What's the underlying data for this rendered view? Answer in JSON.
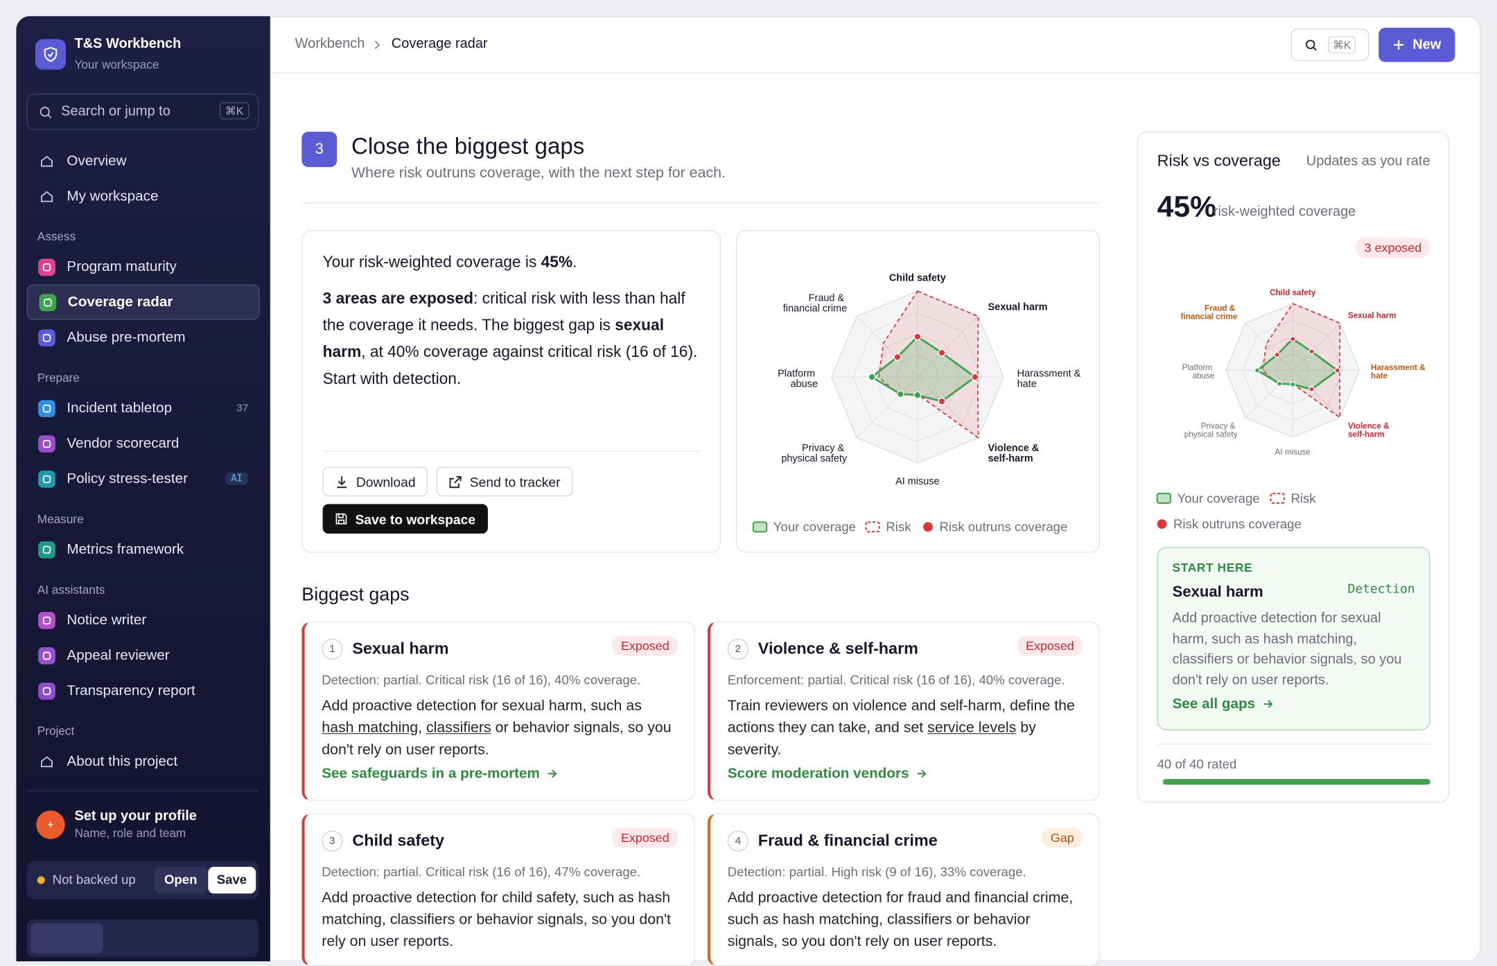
{
  "sidebar": {
    "app_title": "T&S Workbench",
    "app_subtitle": "Your workspace",
    "search": "Search or jump to",
    "search_kbd": "⌘K",
    "groups": [
      {
        "items": [
          {
            "label": "Overview"
          },
          {
            "label": "My workspace"
          }
        ]
      },
      {
        "label": "Assess",
        "items": [
          {
            "label": "Program maturity",
            "color": "#d9468f"
          },
          {
            "label": "Coverage radar",
            "color": "#3fa34d",
            "active": true
          },
          {
            "label": "Abuse pre-mortem",
            "color": "#5b5bd6"
          }
        ]
      },
      {
        "label": "Prepare",
        "items": [
          {
            "label": "Incident tabletop",
            "color": "#2f8fe0",
            "badge": "37"
          },
          {
            "label": "Vendor scorecard",
            "color": "#9a4fc9"
          },
          {
            "label": "Policy stress-tester",
            "color": "#1f9aa8",
            "badge": "AI"
          }
        ]
      },
      {
        "label": "Measure",
        "items": [
          {
            "label": "Metrics framework",
            "color": "#1f9a8a"
          }
        ]
      },
      {
        "label": "AI assistants",
        "items": [
          {
            "label": "Notice writer",
            "color": "#b34fc9"
          },
          {
            "label": "Appeal reviewer",
            "color": "#9a4fc9"
          },
          {
            "label": "Transparency report",
            "color": "#8a4fc9"
          }
        ]
      },
      {
        "label": "Project",
        "items": [
          {
            "label": "About this project"
          }
        ]
      }
    ],
    "profile_title": "Set up your profile",
    "profile_subtitle": "Name, role and team",
    "backup_status": "Not backed up",
    "open": "Open",
    "save": "Save"
  },
  "header": {
    "breadcrumb_root": "Workbench",
    "breadcrumb_current": "Coverage radar",
    "search_kbd": "⌘K",
    "new": "New"
  },
  "section": {
    "step": "3",
    "title": "Close the biggest gaps",
    "subtitle": "Where risk outruns coverage, with the next step for each."
  },
  "summary": {
    "line1": [
      {
        "text": "Your risk-weighted coverage is "
      },
      {
        "text": "45%",
        "bold": true
      },
      {
        "text": "."
      }
    ],
    "line2": [
      {
        "text": "3 areas are exposed",
        "bold": true
      },
      {
        "text": ": critical risk with less than half the coverage it needs. The biggest gap is "
      },
      {
        "text": "sexual harm",
        "bold": true
      },
      {
        "text": ", at 40% coverage against critical risk (16 of 16). Start with detection."
      }
    ],
    "download": "Download",
    "send": "Send to tracker",
    "save": "Save to workspace"
  },
  "chart_data": {
    "type": "radar",
    "categories": [
      "Child safety",
      "Sexual harm",
      "Harassment & hate",
      "Violence & self-harm",
      "AI misuse",
      "Privacy & physical safety",
      "Platform abuse",
      "Fraud & financial crime"
    ],
    "status": [
      "exposed",
      "exposed",
      "gap",
      "exposed",
      "ok",
      "ok",
      "ok",
      "gap"
    ],
    "rlim": [
      0,
      100
    ],
    "series": [
      {
        "name": "Your coverage",
        "color": "#3fa34d",
        "values": [
          47,
          40,
          67,
          40,
          21,
          28,
          53,
          33
        ]
      },
      {
        "name": "Risk",
        "color": "#d93a3a",
        "values": [
          100,
          100,
          70,
          100,
          20,
          30,
          45,
          56
        ]
      }
    ],
    "marker_legend": "Risk outruns coverage"
  },
  "gaps_title": "Biggest gaps",
  "gaps": [
    {
      "n": "1",
      "title": "Sexual harm",
      "tag": "Exposed",
      "tone": "exposed",
      "meta": "Detection: partial. Critical risk (16 of 16), 40% coverage.",
      "desc": [
        {
          "text": "Add proactive detection for sexual harm, such as "
        },
        {
          "text": "hash matching",
          "underline": true
        },
        {
          "text": ", "
        },
        {
          "text": "classifiers",
          "underline": true
        },
        {
          "text": " or behavior signals, so you don't rely on user reports."
        }
      ],
      "link": "See safeguards in a pre-mortem"
    },
    {
      "n": "2",
      "title": "Violence & self-harm",
      "tag": "Exposed",
      "tone": "exposed",
      "meta": "Enforcement: partial. Critical risk (16 of 16), 40% coverage.",
      "desc": [
        {
          "text": "Train reviewers on violence and self-harm, define the actions they can take, and set "
        },
        {
          "text": "service levels",
          "underline": true
        },
        {
          "text": " by severity."
        }
      ],
      "link": "Score moderation vendors"
    },
    {
      "n": "3",
      "title": "Child safety",
      "tag": "Exposed",
      "tone": "exposed",
      "meta": "Detection: partial. Critical risk (16 of 16), 47% coverage.",
      "desc": [
        {
          "text": "Add proactive detection for child safety, such as hash matching, classifiers or behavior signals, so you don't rely on user reports."
        }
      ]
    },
    {
      "n": "4",
      "title": "Fraud & financial crime",
      "tag": "Gap",
      "tone": "gap",
      "meta": "Detection: partial. High risk (9 of 16), 33% coverage.",
      "desc": [
        {
          "text": "Add proactive detection for fraud and financial crime, such as hash matching, classifiers or behavior signals, so you don't rely on user reports."
        }
      ]
    }
  ],
  "panel": {
    "title": "Risk vs coverage",
    "note": "Updates as you rate",
    "big": "45%",
    "big_label": "risk-weighted coverage",
    "exposed": "3 exposed",
    "start_label": "START HERE",
    "start_title": "Sexual harm",
    "start_tag": "Detection",
    "start_desc": "Add proactive detection for sexual harm, such as hash matching, classifiers or behavior signals, so you don't rely on user reports.",
    "start_link": "See all gaps",
    "progress": {
      "label": "40 of 40 rated",
      "value": 40,
      "max": 40
    }
  }
}
